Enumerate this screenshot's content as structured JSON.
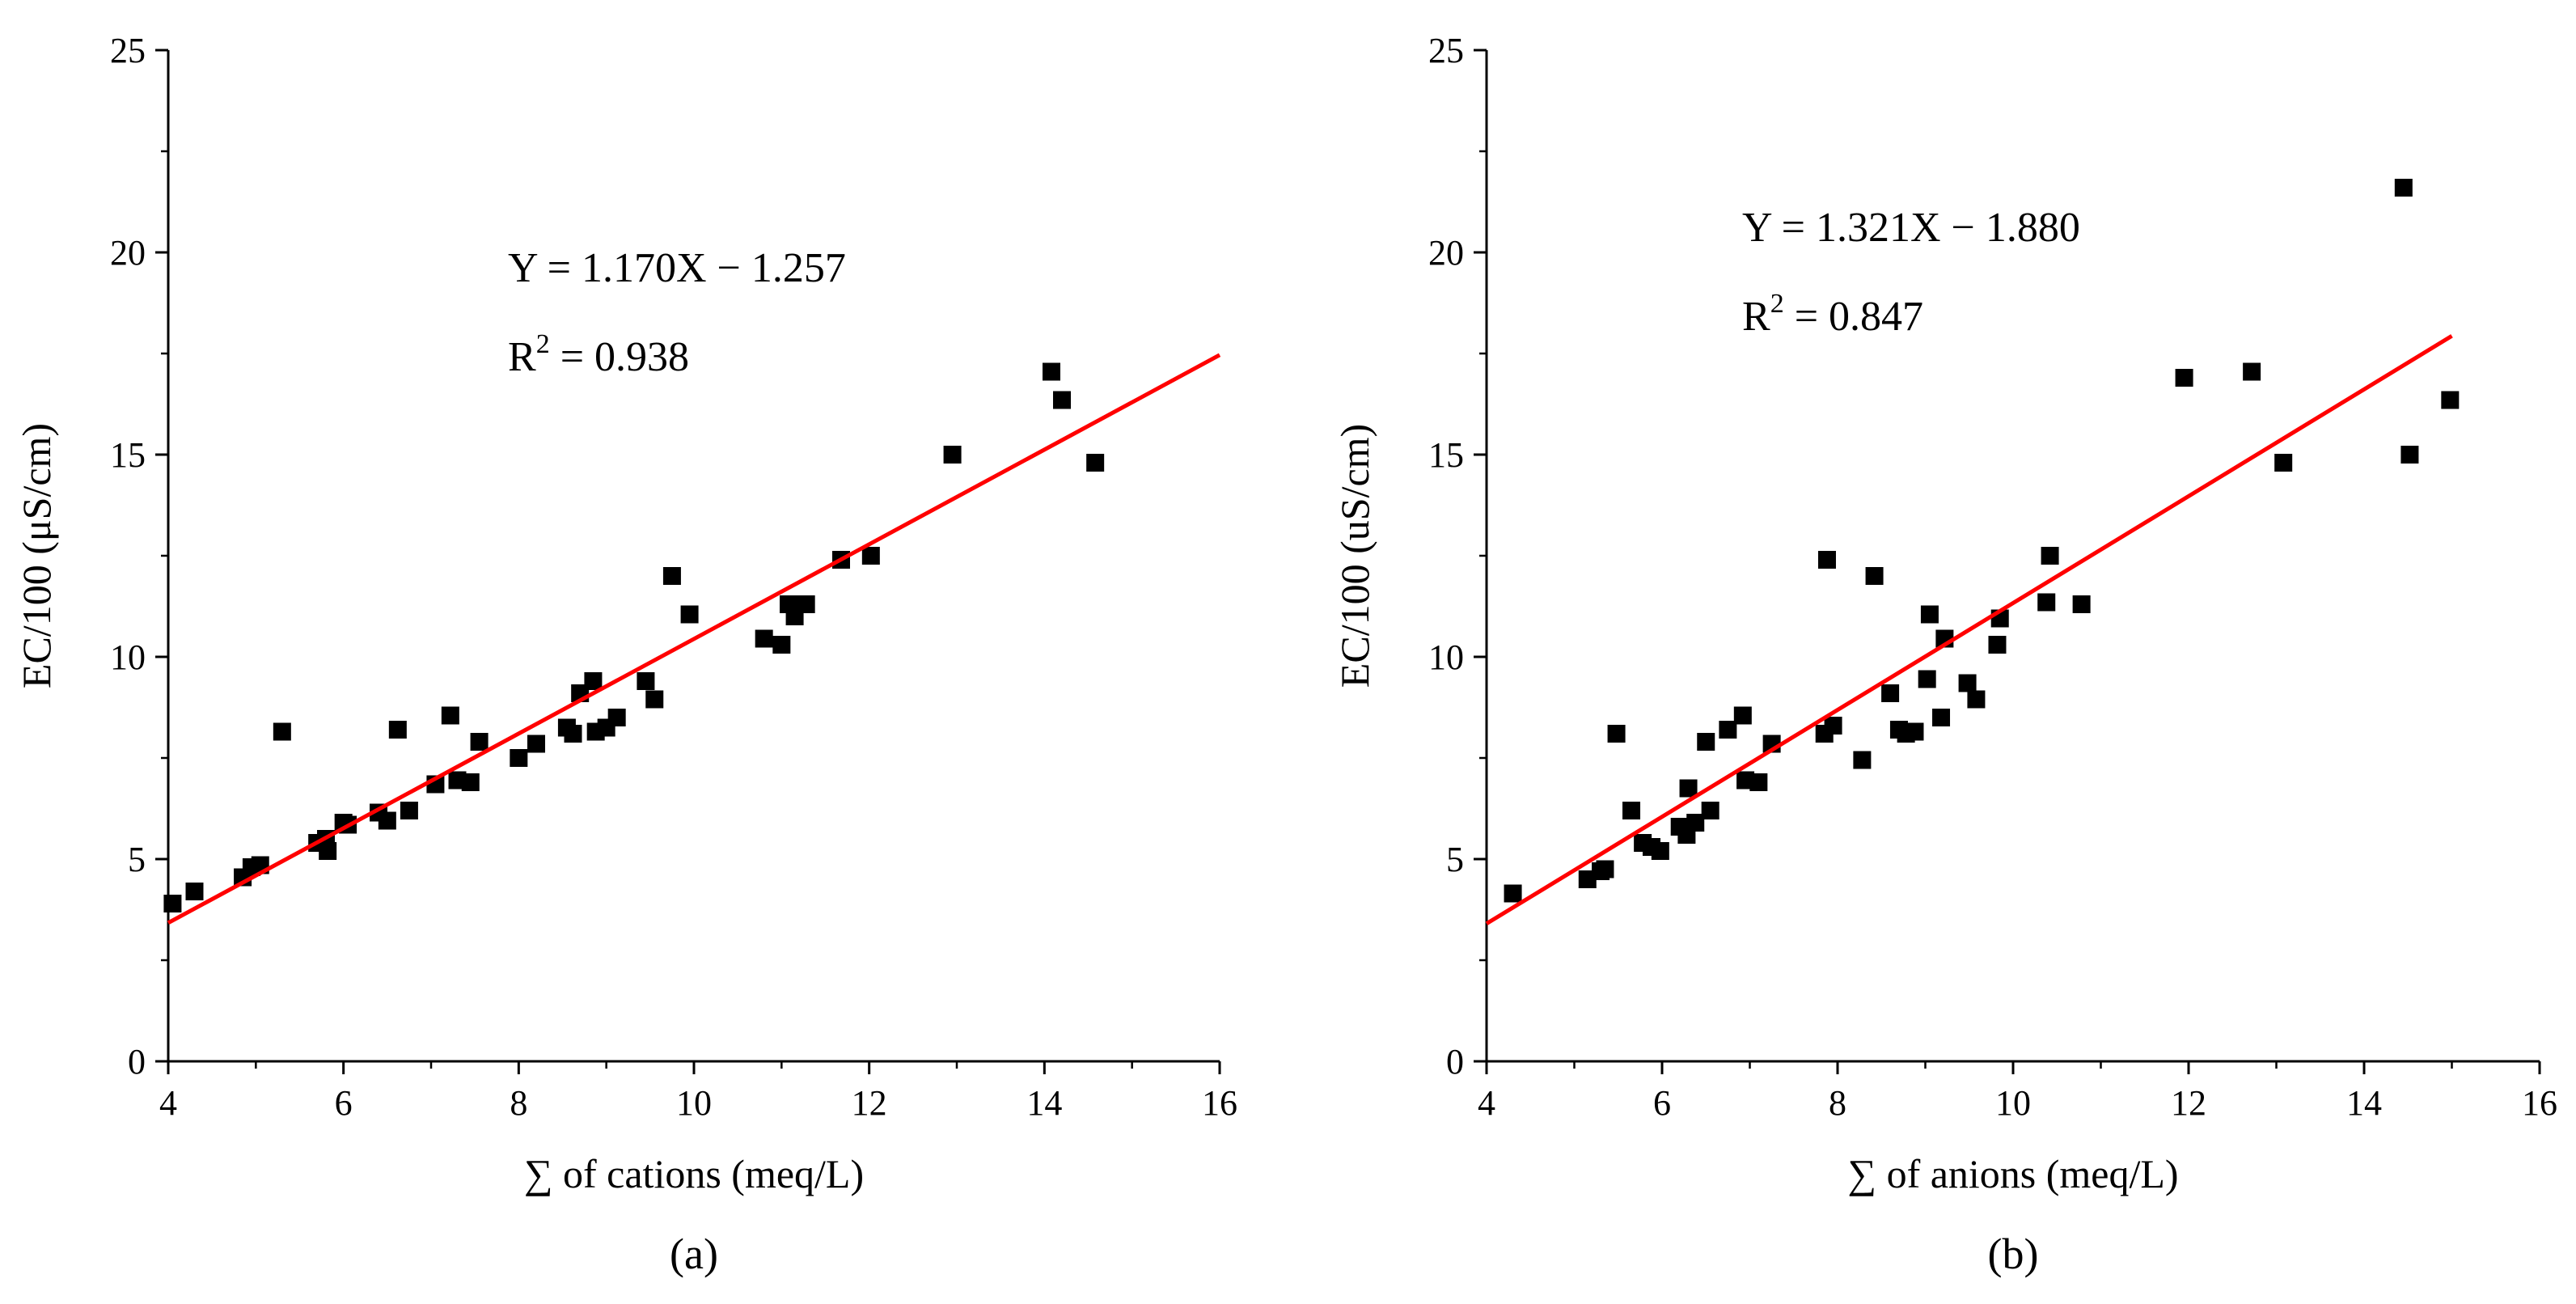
{
  "chart_data": [
    {
      "type": "scatter",
      "panel_label": "(a)",
      "xlabel": "∑ of cations (meq/L)",
      "ylabel": "EC/100 (μS/cm)",
      "xlim": [
        4,
        16
      ],
      "ylim": [
        0,
        25
      ],
      "xticks": [
        4,
        6,
        8,
        10,
        12,
        14,
        16
      ],
      "yticks": [
        0,
        5,
        10,
        15,
        20,
        25
      ],
      "equation": "Y = 1.170X − 1.257",
      "r2_prefix": "R",
      "r2_exponent": "2",
      "r2_value": " = 0.938",
      "fit": {
        "slope": 1.17,
        "intercept": -1.257,
        "x_range": [
          4.0,
          16.0
        ]
      },
      "series": [
        {
          "name": "samples",
          "x": [
            4.05,
            4.3,
            4.85,
            4.95,
            5.05,
            5.3,
            5.7,
            5.8,
            5.82,
            6.0,
            6.05,
            6.4,
            6.5,
            6.62,
            6.75,
            7.05,
            7.22,
            7.3,
            7.45,
            7.55,
            8.0,
            8.2,
            8.55,
            8.62,
            8.7,
            8.85,
            8.88,
            9.0,
            9.12,
            9.45,
            9.55,
            9.75,
            9.95,
            10.8,
            11.0,
            11.08,
            11.15,
            11.28,
            11.68,
            12.02,
            12.95,
            14.08,
            14.2,
            14.58
          ],
          "y": [
            3.9,
            4.2,
            4.55,
            4.8,
            4.85,
            8.15,
            5.4,
            5.5,
            5.2,
            5.9,
            5.85,
            6.15,
            5.95,
            8.2,
            6.2,
            6.85,
            8.55,
            6.95,
            6.9,
            7.9,
            7.5,
            7.85,
            8.25,
            8.1,
            9.1,
            9.4,
            8.15,
            8.25,
            8.5,
            9.4,
            8.95,
            12.0,
            11.05,
            10.45,
            10.3,
            11.3,
            11.0,
            11.3,
            12.4,
            12.5,
            15.0,
            17.05,
            16.35,
            14.8
          ]
        }
      ]
    },
    {
      "type": "scatter",
      "panel_label": "(b)",
      "xlabel": "∑ of anions (meq/L)",
      "ylabel": "EC/100 (uS/cm)",
      "xlim": [
        4,
        16
      ],
      "ylim": [
        0,
        25
      ],
      "xticks": [
        4,
        6,
        8,
        10,
        12,
        14,
        16
      ],
      "yticks": [
        0,
        5,
        10,
        15,
        20,
        25
      ],
      "equation": "Y = 1.321X − 1.880",
      "r2_prefix": "R",
      "r2_exponent": "2",
      "r2_value": " = 0.847",
      "fit": {
        "slope": 1.321,
        "intercept": -1.88,
        "x_range": [
          4.0,
          15.0
        ]
      },
      "series": [
        {
          "name": "samples",
          "x": [
            4.3,
            5.15,
            5.3,
            5.35,
            5.48,
            5.65,
            5.78,
            5.88,
            5.98,
            6.2,
            6.28,
            6.3,
            6.38,
            6.5,
            6.55,
            6.75,
            6.92,
            6.95,
            7.1,
            7.25,
            7.85,
            7.88,
            7.95,
            8.28,
            8.42,
            8.6,
            8.7,
            8.78,
            8.88,
            9.02,
            9.05,
            9.18,
            9.22,
            9.48,
            9.58,
            9.82,
            9.85,
            10.38,
            10.42,
            10.78,
            11.95,
            12.72,
            13.08,
            14.45,
            14.52,
            14.98
          ],
          "y": [
            4.15,
            4.5,
            4.7,
            4.75,
            8.1,
            6.2,
            5.4,
            5.3,
            5.2,
            5.8,
            5.6,
            6.75,
            5.9,
            7.9,
            6.2,
            8.2,
            8.55,
            6.95,
            6.9,
            7.85,
            8.1,
            12.4,
            8.3,
            7.45,
            12.0,
            9.1,
            8.2,
            8.1,
            8.15,
            9.45,
            11.05,
            8.5,
            10.45,
            9.35,
            8.95,
            10.3,
            10.95,
            11.35,
            12.5,
            11.3,
            16.9,
            17.05,
            14.8,
            21.6,
            15.0,
            16.35
          ]
        }
      ]
    }
  ],
  "style": {
    "marker_color": "#000000",
    "fit_line_color": "#ff0000",
    "axis_color": "#000000"
  }
}
